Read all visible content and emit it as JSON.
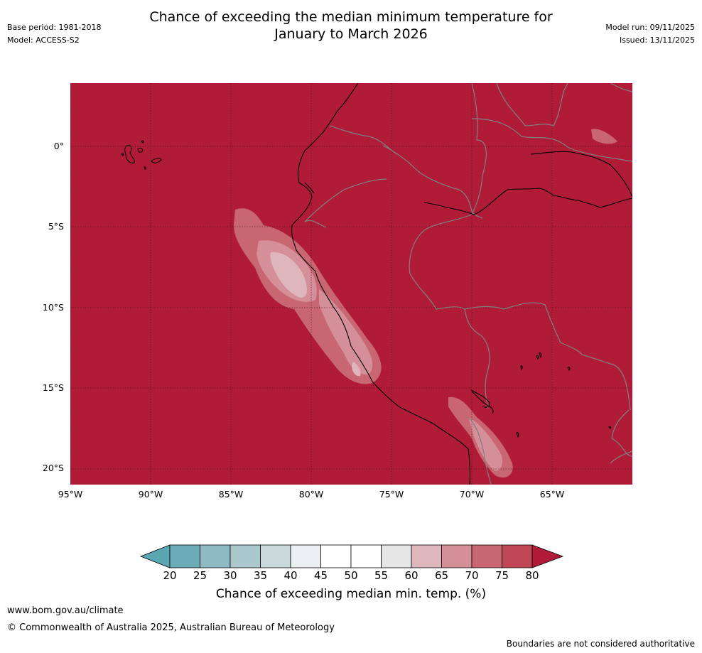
{
  "header": {
    "title_line1": "Chance of exceeding the median minimum temperature for",
    "title_line2": "January to March 2026",
    "base_period": "Base period: 1981-2018",
    "model": "Model: ACCESS-S2",
    "model_run": "Model run: 09/11/2025",
    "issued": "Issued: 13/11/2025"
  },
  "map": {
    "lon_labels": [
      "95°W",
      "90°W",
      "85°W",
      "80°W",
      "75°W",
      "70°W",
      "65°W"
    ],
    "lat_labels": [
      "0°",
      "5°S",
      "10°S",
      "15°S",
      "20°S"
    ],
    "background_color": "#b01c38",
    "coastline_color": "#000000",
    "border_color": "#808080"
  },
  "colorbar": {
    "ticks": [
      "20",
      "25",
      "30",
      "35",
      "40",
      "45",
      "50",
      "55",
      "60",
      "65",
      "70",
      "75",
      "80"
    ],
    "colors": [
      "#5aa6b2",
      "#6aacb8",
      "#8ebac4",
      "#abc8cd",
      "#c8d8db",
      "#eaf0f2",
      "#ffffff",
      "#ffffff",
      "#e6e6e6",
      "#dfb6bc",
      "#d48f98",
      "#c86672",
      "#bf4655",
      "#b01c38"
    ],
    "label": "Chance of exceeding median min. temp. (%)"
  },
  "footer": {
    "site": "www.bom.gov.au/climate",
    "copyright": "© Commonwealth of Australia 2025, Australian Bureau of Meteorology",
    "disclaimer": "Boundaries are not considered authoritative"
  }
}
